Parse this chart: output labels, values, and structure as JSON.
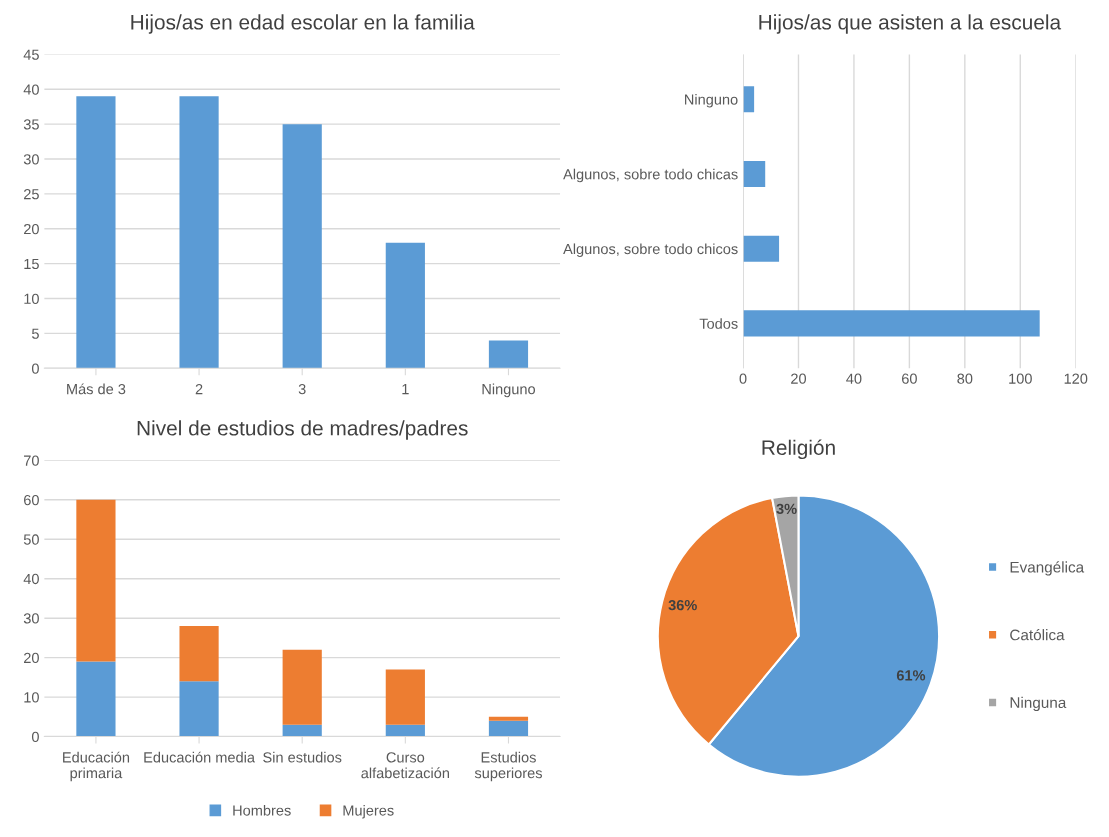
{
  "chart_data": [
    {
      "type": "bar",
      "title": "Hijos/as en edad escolar en la familia",
      "categories": [
        "Más de 3",
        "2",
        "3",
        "1",
        "Ninguno"
      ],
      "values": [
        39,
        39,
        35,
        18,
        4
      ],
      "color": "#5b9bd5",
      "ylim": [
        0,
        45
      ],
      "yticks": [
        0,
        5,
        10,
        15,
        20,
        25,
        30,
        35,
        40,
        45
      ],
      "grid": "y"
    },
    {
      "type": "bar",
      "orientation": "horizontal",
      "title": "Hijos/as que asisten a la escuela",
      "categories": [
        "Ninguno",
        "Algunos, sobre todo chicas",
        "Algunos, sobre todo chicos",
        "Todos"
      ],
      "values": [
        4,
        8,
        13,
        107
      ],
      "color": "#5b9bd5",
      "xlim": [
        0,
        120
      ],
      "xticks": [
        0,
        20,
        40,
        60,
        80,
        100,
        120
      ],
      "grid": "x"
    },
    {
      "type": "bar",
      "stacked": true,
      "title": "Nivel de estudios de madres/padres",
      "categories": [
        "Educación primaria",
        "Educación media",
        "Sin estudios",
        "Curso alfabetización",
        "Estudios superiores"
      ],
      "series": [
        {
          "name": "Hombres",
          "color": "#5b9bd5",
          "values": [
            19,
            14,
            3,
            3,
            4
          ]
        },
        {
          "name": "Mujeres",
          "color": "#ed7d31",
          "values": [
            41,
            14,
            19,
            14,
            1
          ]
        }
      ],
      "ylim": [
        0,
        70
      ],
      "yticks": [
        0,
        10,
        20,
        30,
        40,
        50,
        60,
        70
      ],
      "grid": "y",
      "legend": "bottom"
    },
    {
      "type": "pie",
      "title": "Religión",
      "categories": [
        "Evangélica",
        "Católica",
        "Ninguna"
      ],
      "values": [
        61,
        36,
        3
      ],
      "colors": [
        "#5b9bd5",
        "#ed7d31",
        "#a5a5a5"
      ],
      "value_labels": [
        "61%",
        "36%",
        "3%"
      ],
      "legend": "right"
    }
  ]
}
